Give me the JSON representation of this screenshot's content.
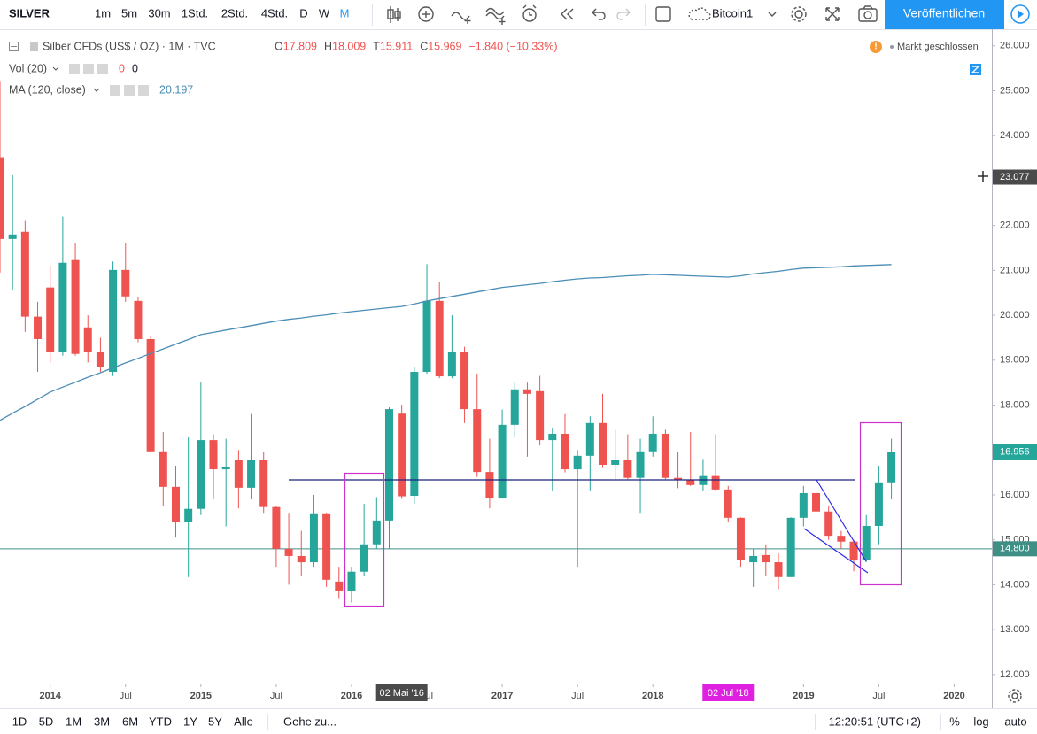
{
  "toolbar": {
    "symbol": "SILVER",
    "intervals": [
      "1m",
      "5m",
      "30m",
      "1Std.",
      "2Std.",
      "4Std.",
      "D",
      "W",
      "M"
    ],
    "active_interval": 8,
    "layout_name": "Bitcoin1",
    "publish": "Veröffentlichen"
  },
  "chart_data": {
    "type": "candlestick",
    "title": "Silber CFDs (US$ / OZ) · 1M · TVC",
    "legend_ohlc": [
      {
        "key": "O",
        "value": 17.809
      },
      {
        "key": "H",
        "value": 18.009
      },
      {
        "key": "T",
        "value": 15.911
      },
      {
        "key": "C",
        "value": 15.969
      }
    ],
    "change": "−1.840 (−10.33%)",
    "status": "Markt geschlossen",
    "volume": {
      "name": "Vol (20)",
      "values": [
        0,
        0
      ]
    },
    "ma": {
      "name": "MA (120, close)",
      "last": 20.197,
      "color": "#4a8db5",
      "values": [
        17.66,
        17.82,
        17.97,
        18.13,
        18.29,
        18.4,
        18.51,
        18.62,
        18.72,
        18.83,
        18.94,
        19.04,
        19.15,
        19.25,
        19.36,
        19.46,
        19.57,
        19.62,
        19.67,
        19.72,
        19.77,
        19.82,
        19.87,
        19.91,
        19.94,
        19.98,
        20.01,
        20.05,
        20.08,
        20.11,
        20.14,
        20.17,
        20.197,
        20.25,
        20.32,
        20.37,
        20.42,
        20.47,
        20.52,
        20.57,
        20.62,
        20.65,
        20.68,
        20.71,
        20.75,
        20.78,
        20.81,
        20.83,
        20.84,
        20.86,
        20.88,
        20.89,
        20.91,
        20.9,
        20.89,
        20.88,
        20.87,
        20.86,
        20.85,
        20.88,
        20.92,
        20.95,
        20.98,
        21.02,
        21.05,
        21.06,
        21.07,
        21.08,
        21.1,
        21.11,
        21.12,
        21.13
      ]
    },
    "up_color": "#26a69a",
    "down_color": "#ef5350",
    "x": [
      "2013-09",
      "2013-10",
      "2013-11",
      "2013-12",
      "2014-01",
      "2014-02",
      "2014-03",
      "2014-04",
      "2014-05",
      "2014-06",
      "2014-07",
      "2014-08",
      "2014-09",
      "2014-10",
      "2014-11",
      "2014-12",
      "2015-01",
      "2015-02",
      "2015-03",
      "2015-04",
      "2015-05",
      "2015-06",
      "2015-07",
      "2015-08",
      "2015-09",
      "2015-10",
      "2015-11",
      "2015-12",
      "2016-01",
      "2016-02",
      "2016-03",
      "2016-04",
      "2016-05",
      "2016-06",
      "2016-07",
      "2016-08",
      "2016-09",
      "2016-10",
      "2016-11",
      "2016-12",
      "2017-01",
      "2017-02",
      "2017-03",
      "2017-04",
      "2017-05",
      "2017-06",
      "2017-07",
      "2017-08",
      "2017-09",
      "2017-10",
      "2017-11",
      "2017-12",
      "2018-01",
      "2018-02",
      "2018-03",
      "2018-04",
      "2018-05",
      "2018-06",
      "2018-07",
      "2018-08",
      "2018-09",
      "2018-10",
      "2018-11",
      "2018-12",
      "2019-01",
      "2019-02",
      "2019-03",
      "2019-04",
      "2019-05",
      "2019-06",
      "2019-07",
      "2019-08"
    ],
    "open": [
      23.52,
      21.7,
      21.86,
      19.97,
      20.62,
      19.18,
      21.23,
      19.73,
      19.18,
      18.74,
      21.01,
      20.32,
      19.47,
      16.97,
      16.18,
      15.39,
      15.69,
      17.22,
      16.57,
      16.77,
      16.16,
      16.77,
      15.73,
      14.8,
      14.64,
      14.5,
      15.59,
      14.07,
      13.87,
      14.29,
      14.9,
      15.43,
      17.809,
      15.98,
      18.74,
      20.32,
      18.64,
      19.18,
      17.91,
      16.51,
      15.92,
      17.56,
      18.35,
      18.31,
      17.22,
      17.36,
      16.57,
      16.87,
      17.6,
      16.67,
      16.77,
      16.38,
      16.97,
      17.36,
      16.38,
      16.34,
      16.22,
      16.42,
      16.12,
      15.49,
      14.5,
      14.66,
      14.5,
      14.17,
      15.49,
      16.04,
      15.63,
      15.09,
      14.96,
      14.56,
      15.31,
      16.28
    ],
    "high": [
      25.2,
      23.12,
      22.1,
      20.3,
      21.11,
      22.2,
      21.6,
      20.0,
      19.5,
      21.2,
      21.6,
      20.4,
      19.55,
      17.4,
      16.65,
      17.3,
      18.5,
      17.35,
      17.25,
      17.0,
      17.8,
      16.95,
      15.75,
      15.6,
      15.2,
      16.0,
      15.6,
      14.4,
      14.4,
      15.8,
      15.95,
      17.95,
      18.009,
      18.85,
      21.14,
      20.75,
      20.0,
      19.3,
      18.7,
      17.25,
      17.9,
      18.5,
      18.5,
      18.65,
      17.5,
      17.8,
      17.0,
      17.75,
      18.25,
      17.45,
      17.35,
      17.25,
      17.75,
      17.45,
      16.95,
      17.4,
      16.8,
      17.35,
      16.2,
      15.5,
      14.8,
      14.9,
      14.7,
      15.5,
      16.2,
      16.2,
      15.75,
      15.2,
      15.0,
      15.55,
      16.65,
      17.25
    ],
    "low": [
      20.95,
      20.56,
      19.63,
      18.74,
      18.94,
      19.1,
      19.1,
      18.95,
      18.74,
      18.65,
      20.3,
      19.4,
      16.95,
      15.75,
      15.05,
      14.17,
      15.55,
      15.9,
      15.3,
      15.7,
      15.9,
      15.6,
      14.4,
      14.0,
      14.2,
      14.4,
      13.95,
      13.7,
      13.6,
      14.2,
      14.8,
      14.8,
      15.911,
      15.8,
      18.7,
      18.6,
      18.6,
      17.6,
      16.4,
      15.7,
      15.92,
      17.3,
      16.85,
      17.1,
      16.1,
      16.5,
      14.4,
      16.1,
      16.6,
      16.35,
      16.35,
      15.6,
      16.85,
      16.35,
      16.15,
      16.2,
      16.1,
      16.1,
      15.4,
      14.4,
      13.95,
      14.2,
      13.9,
      14.17,
      15.3,
      15.55,
      15.0,
      14.8,
      14.3,
      14.5,
      14.9,
      15.9
    ],
    "close": [
      21.7,
      21.8,
      19.97,
      19.47,
      19.18,
      21.17,
      19.14,
      19.18,
      18.84,
      21.01,
      20.42,
      19.47,
      16.97,
      16.18,
      15.39,
      15.69,
      17.22,
      16.57,
      16.63,
      16.16,
      16.77,
      15.73,
      14.8,
      14.64,
      14.5,
      15.59,
      14.11,
      13.87,
      14.29,
      14.9,
      15.43,
      17.91,
      15.969,
      18.74,
      20.32,
      18.64,
      19.18,
      17.91,
      16.51,
      15.92,
      17.56,
      18.35,
      18.25,
      17.22,
      17.36,
      16.57,
      16.87,
      17.6,
      16.67,
      16.77,
      16.38,
      16.97,
      17.36,
      16.38,
      16.34,
      16.22,
      16.42,
      16.12,
      15.49,
      14.56,
      14.64,
      14.5,
      14.17,
      15.49,
      16.04,
      15.63,
      15.09,
      14.96,
      14.56,
      15.31,
      16.28,
      16.956
    ],
    "xlim": [
      "2013-09",
      "2020-04"
    ],
    "xticks": [
      {
        "value": "2014-01",
        "label": "2014"
      },
      {
        "value": "2014-07",
        "label": "Jul"
      },
      {
        "value": "2015-01",
        "label": "2015"
      },
      {
        "value": "2015-07",
        "label": "Jul"
      },
      {
        "value": "2016-01",
        "label": "2016"
      },
      {
        "value": "2016-07",
        "label": "Jul"
      },
      {
        "value": "2017-01",
        "label": "2017"
      },
      {
        "value": "2017-07",
        "label": "Jul"
      },
      {
        "value": "2018-01",
        "label": "2018"
      },
      {
        "value": "2018-07",
        "label": "Jul"
      },
      {
        "value": "2019-01",
        "label": "2019"
      },
      {
        "value": "2019-07",
        "label": "Jul"
      },
      {
        "value": "2020-01",
        "label": "2020"
      }
    ],
    "ylim": [
      11.8,
      26.37
    ],
    "yticks": [
      {
        "value": 12,
        "label": "12.000"
      },
      {
        "value": 13,
        "label": "13.000"
      },
      {
        "value": 14,
        "label": "14.000"
      },
      {
        "value": 15,
        "label": "15.000"
      },
      {
        "value": 16,
        "label": "16.000"
      },
      {
        "value": 17,
        "label": "17.000"
      },
      {
        "value": 18,
        "label": "18.000"
      },
      {
        "value": 19,
        "label": "19.000"
      },
      {
        "value": 20,
        "label": "20.000"
      },
      {
        "value": 21,
        "label": "21.000"
      },
      {
        "value": 22,
        "label": "22.000"
      },
      {
        "value": 23,
        "label": "23.000"
      },
      {
        "value": 24,
        "label": "24.000"
      },
      {
        "value": 25,
        "label": "25.000"
      },
      {
        "value": 26,
        "label": "26.000"
      }
    ],
    "price_labels": [
      {
        "value": 23.077,
        "label": "23.077",
        "color": "#4a4a4a",
        "line": "none"
      },
      {
        "value": 16.956,
        "label": "16.956",
        "color": "#26a69a",
        "line": "dotted"
      },
      {
        "value": 14.8,
        "label": "14.800",
        "color": "#3f8f87",
        "line": "solid"
      }
    ],
    "crosshair_dates": [
      {
        "value": "2016-05",
        "label": "02 Mai '16",
        "color": "#4a4a4a"
      },
      {
        "value": "2018-07",
        "label": "02 Jul '18",
        "color": "#e020e0"
      }
    ],
    "grid": false,
    "log_scale": false
  },
  "bottom_bar": {
    "ranges": [
      "1D",
      "5D",
      "1M",
      "3M",
      "6M",
      "YTD",
      "1Y",
      "5Y",
      "Alle"
    ],
    "goto": "Gehe zu...",
    "clock": "12:20:51 (UTC+2)",
    "percent": "%",
    "log": "log",
    "auto": "auto"
  }
}
